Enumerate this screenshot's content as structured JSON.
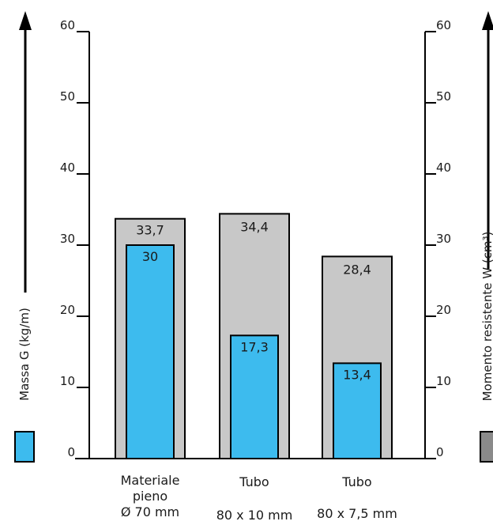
{
  "chart_data": {
    "type": "bar",
    "categories": [
      [
        "Materiale",
        "pieno",
        "Ø 70 mm"
      ],
      [
        "Tubo",
        "80 x 10 mm"
      ],
      [
        "Tubo",
        "80 x 7,5 mm"
      ]
    ],
    "series": [
      {
        "name": "Momento resistente W (cm³)",
        "axis": "right",
        "values": [
          33.7,
          34.4,
          28.4
        ],
        "labels": [
          "33,7",
          "34,4",
          "28,4"
        ],
        "color": "#c8c8c8"
      },
      {
        "name": "Massa G (kg/m)",
        "axis": "left",
        "values": [
          30,
          17.3,
          13.4
        ],
        "labels": [
          "30",
          "17,3",
          "13,4"
        ],
        "color": "#3dbbee"
      }
    ],
    "y_left": {
      "label": "Massa G (kg/m)",
      "ylim": [
        0,
        60
      ],
      "ticks": [
        0,
        10,
        20,
        30,
        40,
        50,
        60
      ]
    },
    "y_right": {
      "label": "Momento resistente W (cm³)",
      "ylim": [
        0,
        60
      ],
      "ticks": [
        0,
        10,
        20,
        30,
        40,
        50,
        60
      ]
    },
    "legend": [
      {
        "series": "Massa G (kg/m)",
        "color": "#3dbbee",
        "placement": "left"
      },
      {
        "series": "Momento resistente W (cm³)",
        "color": "#8a8a8a",
        "placement": "right"
      }
    ],
    "grid": false
  }
}
